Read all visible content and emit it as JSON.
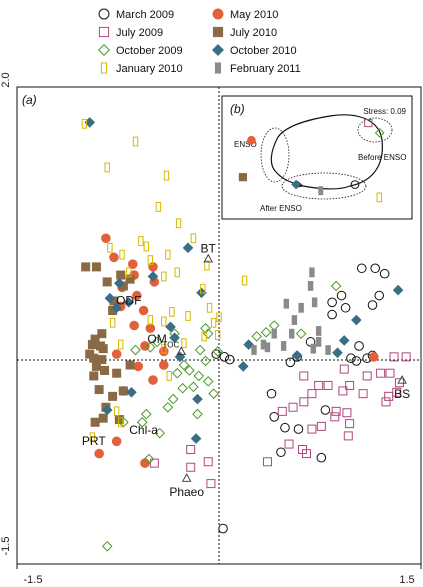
{
  "chart_data": {
    "type": "scatter",
    "panel_a_label": "(a)",
    "xlim": [
      -1.5,
      1.5
    ],
    "ylim": [
      -1.5,
      2.0
    ],
    "x_ticks": [
      "-1.5",
      "1.5"
    ],
    "y_ticks": [
      "2.0",
      "-1.5"
    ],
    "legend": [
      {
        "name": "March 2009",
        "marker": "circle-open",
        "color": "#111111"
      },
      {
        "name": "May 2010",
        "marker": "circle-filled",
        "color": "#e2603a"
      },
      {
        "name": "July 2009",
        "marker": "square-open",
        "color": "#b0467e"
      },
      {
        "name": "July 2010",
        "marker": "square-filled",
        "color": "#8a6a45"
      },
      {
        "name": "October 2009",
        "marker": "diamond-open",
        "color": "#4a9a2a"
      },
      {
        "name": "October 2010",
        "marker": "diamond-filled",
        "color": "#3a6e84"
      },
      {
        "name": "January 2010",
        "marker": "rect-open",
        "color": "#d8b800"
      },
      {
        "name": "February 2011",
        "marker": "rect-filled",
        "color": "#8a8a8a"
      }
    ],
    "series": [
      {
        "name": "March 2009",
        "points": [
          [
            1.06,
            0.67
          ],
          [
            1.16,
            0.67
          ],
          [
            1.23,
            0.63
          ],
          [
            1.19,
            0.47
          ],
          [
            0.91,
            0.47
          ],
          [
            0.84,
            0.42
          ],
          [
            1.14,
            0.4
          ],
          [
            0.94,
            0.38
          ],
          [
            0.84,
            0.33
          ],
          [
            0.68,
            0.13
          ],
          [
            1.04,
            0.1
          ],
          [
            1.14,
            0.03
          ],
          [
            1.1,
            0.01
          ],
          [
            1.02,
            -0.01
          ],
          [
            0.98,
            0.01
          ],
          [
            0.58,
            0.02
          ],
          [
            0.53,
            -0.02
          ],
          [
            0.08,
            0.0
          ],
          [
            0.04,
            0.02
          ],
          [
            -0.02,
            0.04
          ],
          [
            0.39,
            -0.25
          ],
          [
            0.41,
            -0.42
          ],
          [
            0.49,
            -0.5
          ],
          [
            0.46,
            -0.68
          ],
          [
            0.76,
            -0.72
          ],
          [
            0.79,
            -0.37
          ],
          [
            0.59,
            -0.51
          ],
          [
            0.03,
            -1.24
          ]
        ]
      },
      {
        "name": "May 2010",
        "points": [
          [
            -0.84,
            0.89
          ],
          [
            -0.78,
            0.75
          ],
          [
            -0.64,
            0.7
          ],
          [
            -0.49,
            0.68
          ],
          [
            -0.63,
            0.62
          ],
          [
            -0.72,
            0.53
          ],
          [
            -0.61,
            0.47
          ],
          [
            -0.48,
            0.57
          ],
          [
            -0.73,
            0.39
          ],
          [
            -0.56,
            0.36
          ],
          [
            -0.63,
            0.25
          ],
          [
            -0.51,
            0.23
          ],
          [
            -0.55,
            0.1
          ],
          [
            -0.41,
            0.06
          ],
          [
            -0.76,
            0.04
          ],
          [
            -0.6,
            -0.05
          ],
          [
            -0.41,
            -0.04
          ],
          [
            -0.49,
            -0.15
          ],
          [
            -0.71,
            -0.23
          ],
          [
            -0.76,
            -0.6
          ],
          [
            -0.89,
            -0.69
          ],
          [
            -0.55,
            -0.76
          ],
          [
            1.15,
            0.02
          ]
        ]
      },
      {
        "name": "July 2009",
        "points": [
          [
            1.3,
            0.02
          ],
          [
            1.39,
            0.02
          ],
          [
            1.27,
            -0.1
          ],
          [
            1.2,
            -0.1
          ],
          [
            1.1,
            -0.12
          ],
          [
            0.93,
            -0.07
          ],
          [
            0.81,
            -0.19
          ],
          [
            0.74,
            -0.19
          ],
          [
            0.63,
            -0.12
          ],
          [
            1.34,
            -0.17
          ],
          [
            1.32,
            -0.24
          ],
          [
            0.97,
            -0.19
          ],
          [
            0.92,
            -0.23
          ],
          [
            1.07,
            -0.25
          ],
          [
            0.69,
            -0.25
          ],
          [
            0.63,
            -0.31
          ],
          [
            0.87,
            -0.38
          ],
          [
            1.24,
            -0.31
          ],
          [
            1.26,
            -0.27
          ],
          [
            0.55,
            -0.35
          ],
          [
            0.47,
            -0.38
          ],
          [
            0.86,
            -0.42
          ],
          [
            0.95,
            -0.39
          ],
          [
            0.97,
            -0.47
          ],
          [
            0.76,
            -0.49
          ],
          [
            0.69,
            -0.51
          ],
          [
            0.96,
            -0.56
          ],
          [
            0.52,
            -0.62
          ],
          [
            0.62,
            -0.66
          ],
          [
            0.65,
            -0.69
          ],
          [
            0.36,
            -0.75
          ],
          [
            -0.21,
            -0.66
          ],
          [
            -0.48,
            -0.76
          ],
          [
            -0.08,
            -0.75
          ],
          [
            -0.21,
            -0.79
          ],
          [
            -0.06,
            -0.91
          ]
        ]
      },
      {
        "name": "July 2010",
        "points": [
          [
            -0.99,
            0.68
          ],
          [
            -0.91,
            0.68
          ],
          [
            -0.83,
            0.57
          ],
          [
            -0.73,
            0.62
          ],
          [
            -0.66,
            0.59
          ],
          [
            -0.71,
            0.54
          ],
          [
            -0.78,
            0.43
          ],
          [
            -0.79,
            0.36
          ],
          [
            -0.87,
            0.19
          ],
          [
            -0.92,
            0.15
          ],
          [
            -0.94,
            0.11
          ],
          [
            -0.88,
            0.1
          ],
          [
            -0.86,
            0.08
          ],
          [
            -0.96,
            0.04
          ],
          [
            -0.93,
            0.01
          ],
          [
            -0.87,
            0.0
          ],
          [
            -0.91,
            -0.05
          ],
          [
            -0.85,
            -0.08
          ],
          [
            -0.93,
            -0.12
          ],
          [
            -0.76,
            -0.1
          ],
          [
            -0.66,
            -0.04
          ],
          [
            -0.89,
            -0.22
          ],
          [
            -0.71,
            -0.23
          ],
          [
            -0.79,
            -0.27
          ],
          [
            -0.84,
            -0.35
          ],
          [
            -0.74,
            -0.44
          ],
          [
            -0.86,
            -0.43
          ],
          [
            -0.92,
            -0.46
          ]
        ]
      },
      {
        "name": "October 2009",
        "points": [
          [
            0.87,
            0.54
          ],
          [
            0.41,
            0.25
          ],
          [
            0.35,
            0.2
          ],
          [
            0.28,
            0.17
          ],
          [
            0.61,
            0.19
          ],
          [
            -0.1,
            0.23
          ],
          [
            -0.08,
            0.19
          ],
          [
            -0.33,
            0.19
          ],
          [
            -0.46,
            0.13
          ],
          [
            -0.51,
            0.09
          ],
          [
            -0.62,
            0.07
          ],
          [
            -0.14,
            0.07
          ],
          [
            -0.01,
            0.06
          ],
          [
            -0.1,
            -0.01
          ],
          [
            -0.22,
            -0.08
          ],
          [
            -0.26,
            -0.04
          ],
          [
            -0.31,
            -0.1
          ],
          [
            -0.15,
            -0.12
          ],
          [
            -0.08,
            -0.16
          ],
          [
            -0.04,
            -0.25
          ],
          [
            -0.19,
            -0.2
          ],
          [
            -0.27,
            -0.21
          ],
          [
            -0.34,
            -0.29
          ],
          [
            -0.38,
            -0.35
          ],
          [
            -0.16,
            -0.4
          ],
          [
            -0.54,
            -0.4
          ],
          [
            -0.57,
            -0.46
          ],
          [
            -0.71,
            -0.46
          ],
          [
            -0.44,
            -0.54
          ],
          [
            -0.52,
            -0.73
          ],
          [
            -0.83,
            -1.37
          ]
        ]
      },
      {
        "name": "October 2010",
        "points": [
          [
            -0.96,
            1.74
          ],
          [
            -0.49,
            0.61
          ],
          [
            -0.23,
            0.82
          ],
          [
            -0.13,
            0.49
          ],
          [
            -0.74,
            0.56
          ],
          [
            -0.67,
            0.42
          ],
          [
            -0.36,
            0.24
          ],
          [
            -0.33,
            0.16
          ],
          [
            -0.29,
            0.02
          ],
          [
            0.22,
            0.11
          ],
          [
            0.58,
            0.03
          ],
          [
            0.88,
            0.05
          ],
          [
            0.93,
            0.14
          ],
          [
            1.02,
            0.29
          ],
          [
            1.33,
            0.51
          ],
          [
            0.18,
            -0.05
          ],
          [
            -0.16,
            -0.29
          ],
          [
            -0.17,
            -0.58
          ],
          [
            -0.65,
            -0.24
          ],
          [
            -0.83,
            -0.37
          ],
          [
            -0.81,
            0.45
          ],
          [
            -0.76,
            0.38
          ]
        ]
      },
      {
        "name": "January 2010",
        "points": [
          [
            -1.0,
            1.73
          ],
          [
            -0.83,
            1.41
          ],
          [
            -0.62,
            1.6
          ],
          [
            -0.39,
            1.35
          ],
          [
            -0.45,
            1.12
          ],
          [
            -0.3,
            1.0
          ],
          [
            -0.19,
            0.89
          ],
          [
            -0.58,
            0.87
          ],
          [
            -0.81,
            0.82
          ],
          [
            -0.72,
            0.77
          ],
          [
            -0.54,
            0.83
          ],
          [
            -0.67,
            0.64
          ],
          [
            -0.51,
            0.73
          ],
          [
            -0.38,
            0.77
          ],
          [
            -0.41,
            0.61
          ],
          [
            -0.31,
            0.64
          ],
          [
            -0.09,
            0.69
          ],
          [
            -0.12,
            0.52
          ],
          [
            0.19,
            0.58
          ],
          [
            -0.07,
            0.38
          ],
          [
            -0.35,
            0.35
          ],
          [
            -0.51,
            0.29
          ],
          [
            -0.41,
            0.28
          ],
          [
            -0.23,
            0.32
          ],
          [
            -0.11,
            0.17
          ],
          [
            -0.04,
            0.27
          ],
          [
            0.0,
            0.31
          ],
          [
            -0.79,
            0.27
          ],
          [
            -0.73,
            0.11
          ],
          [
            -0.26,
            0.12
          ],
          [
            -0.37,
            -0.12
          ],
          [
            -0.76,
            -0.38
          ],
          [
            -0.73,
            -0.46
          ],
          [
            1.19,
            1.19
          ],
          [
            -0.94,
            -0.57
          ],
          [
            -0.41,
            0.08
          ],
          [
            -0.01,
            0.18
          ]
        ]
      },
      {
        "name": "February 2011",
        "points": [
          [
            0.69,
            0.64
          ],
          [
            0.68,
            0.54
          ],
          [
            0.71,
            0.42
          ],
          [
            0.5,
            0.41
          ],
          [
            0.61,
            0.38
          ],
          [
            0.56,
            0.29
          ],
          [
            0.74,
            0.21
          ],
          [
            0.41,
            0.19
          ],
          [
            0.54,
            0.19
          ],
          [
            0.48,
            0.1
          ],
          [
            0.33,
            0.11
          ],
          [
            0.36,
            0.09
          ],
          [
            0.26,
            0.07
          ],
          [
            0.7,
            0.08
          ],
          [
            0.81,
            0.07
          ],
          [
            0.74,
            0.13
          ]
        ]
      }
    ],
    "variable_labels": [
      {
        "text": "BT",
        "x": -0.08,
        "y": 0.74,
        "marker": "triangle-open"
      },
      {
        "text": "ODF",
        "x": -0.67,
        "y": 0.44,
        "marker": "none"
      },
      {
        "text": "OM",
        "x": -0.46,
        "y": 0.16,
        "marker": "none"
      },
      {
        "text": "TOC",
        "x": -0.28,
        "y": 0.06,
        "marker": "triangle-open"
      },
      {
        "text": "Chl-a",
        "x": -0.56,
        "y": -0.51,
        "marker": "none"
      },
      {
        "text": "PRT",
        "x": -0.93,
        "y": -0.59,
        "marker": "none"
      },
      {
        "text": "Phaeo",
        "x": -0.24,
        "y": -0.87,
        "marker": "triangle-open"
      },
      {
        "text": "BS",
        "x": 1.36,
        "y": -0.15,
        "marker": "triangle-open"
      }
    ],
    "inset": {
      "label": "(b)",
      "stress_label": "Stress: 0.09",
      "annotations": [
        "ENSO",
        "Before ENSO",
        "After ENSO"
      ],
      "points": [
        {
          "series": "May 2010",
          "x": 0.155,
          "y": 0.36
        },
        {
          "series": "July 2010",
          "x": 0.11,
          "y": 0.66
        },
        {
          "series": "October 2010",
          "x": 0.39,
          "y": 0.72
        },
        {
          "series": "February 2011",
          "x": 0.52,
          "y": 0.77
        },
        {
          "series": "March 2009",
          "x": 0.7,
          "y": 0.72
        },
        {
          "series": "July 2009",
          "x": 0.77,
          "y": 0.22
        },
        {
          "series": "October 2009",
          "x": 0.83,
          "y": 0.3
        }
      ]
    }
  }
}
